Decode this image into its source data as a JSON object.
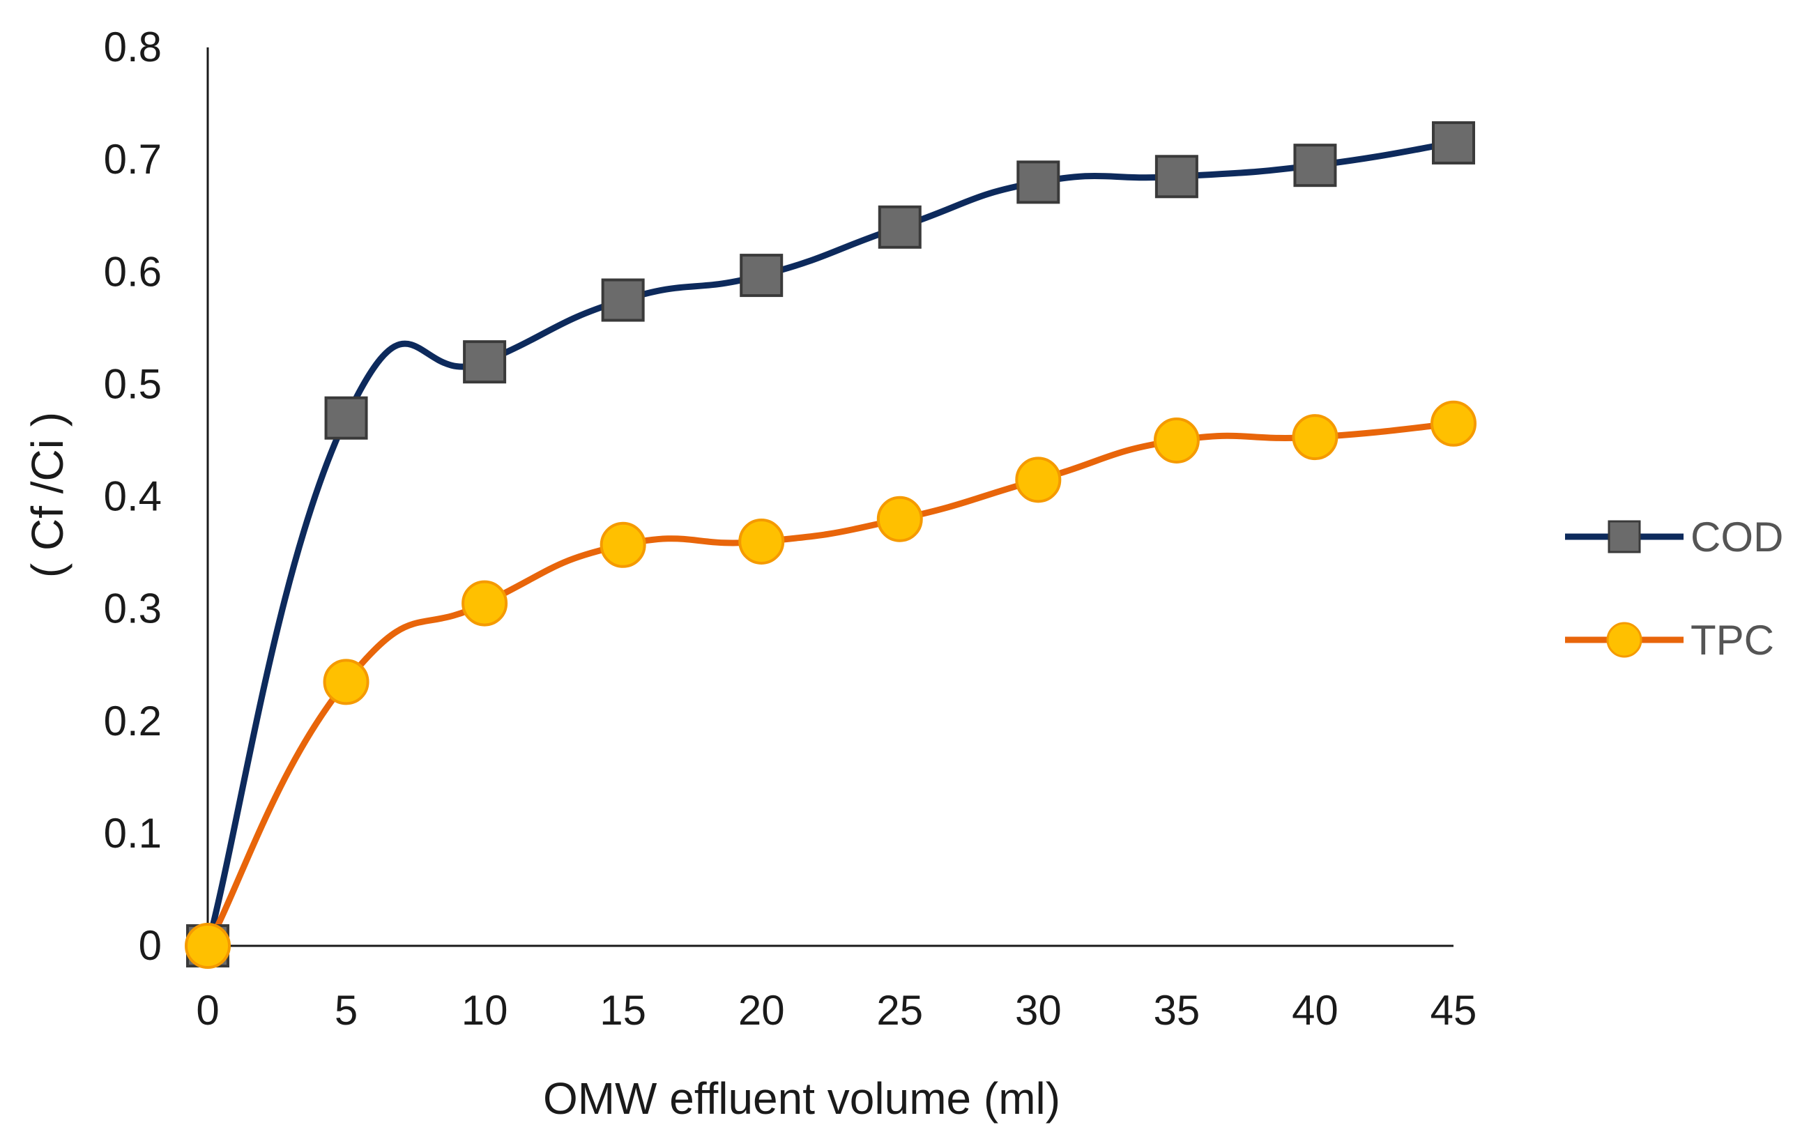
{
  "chart_data": {
    "type": "line",
    "title": "",
    "xlabel": "OMW effluent volume (ml)",
    "ylabel": "( Cf /Ci )",
    "x": [
      0,
      5,
      10,
      15,
      20,
      25,
      30,
      35,
      40,
      45
    ],
    "xticks": [
      "0",
      "5",
      "10",
      "15",
      "20",
      "25",
      "30",
      "35",
      "40",
      "45"
    ],
    "yticks": [
      "0",
      "0.1",
      "0.2",
      "0.3",
      "0.4",
      "0.5",
      "0.6",
      "0.7",
      "0.8"
    ],
    "xlim": [
      0,
      45
    ],
    "ylim": [
      0,
      0.8
    ],
    "grid": false,
    "legend_position": "right",
    "series": [
      {
        "name": "COD",
        "line_color": "#0d2a5c",
        "marker": "square",
        "marker_fill": "#6b6b6b",
        "marker_stroke": "#3a3a3a",
        "values": [
          0,
          0.47,
          0.52,
          0.575,
          0.597,
          0.64,
          0.68,
          0.685,
          0.695,
          0.715
        ]
      },
      {
        "name": "TPC",
        "line_color": "#e8650a",
        "marker": "circle",
        "marker_fill": "#ffc000",
        "marker_stroke": "#f59a00",
        "values": [
          0,
          0.235,
          0.305,
          0.357,
          0.36,
          0.38,
          0.415,
          0.45,
          0.453,
          0.465
        ]
      }
    ]
  }
}
